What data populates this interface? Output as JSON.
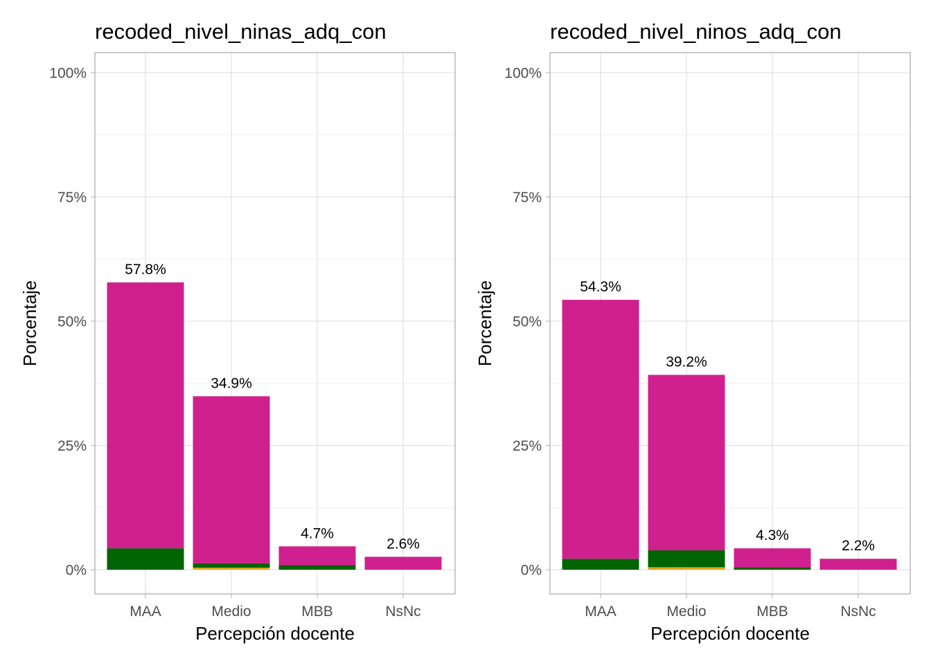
{
  "chart_data": [
    {
      "type": "bar",
      "stacked": true,
      "title": "recoded_nivel_ninas_adq_con",
      "xlabel": "Percepción docente",
      "ylabel": "Porcentaje",
      "categories": [
        "MAA",
        "Medio",
        "MBB",
        "NsNc"
      ],
      "ylim": [
        0,
        100
      ],
      "yticks": [
        "0%",
        "25%",
        "50%",
        "75%",
        "100%"
      ],
      "ytick_values": [
        0,
        25,
        50,
        75,
        100
      ],
      "grid": true,
      "totals": [
        57.8,
        34.9,
        4.7,
        2.6
      ],
      "total_labels": [
        "57.8%",
        "34.9%",
        "4.7%",
        "2.6%"
      ],
      "series": [
        {
          "color": "#E6A817",
          "values": [
            0.0,
            0.4,
            0.0,
            0.0
          ]
        },
        {
          "color": "#006400",
          "values": [
            4.3,
            0.9,
            0.9,
            0.0
          ]
        },
        {
          "color": "#D0208E",
          "values": [
            53.5,
            33.6,
            3.8,
            2.6
          ]
        }
      ]
    },
    {
      "type": "bar",
      "stacked": true,
      "title": "recoded_nivel_ninos_adq_con",
      "xlabel": "Percepción docente",
      "ylabel": "Porcentaje",
      "categories": [
        "MAA",
        "Medio",
        "MBB",
        "NsNc"
      ],
      "ylim": [
        0,
        100
      ],
      "yticks": [
        "0%",
        "25%",
        "50%",
        "75%",
        "100%"
      ],
      "ytick_values": [
        0,
        25,
        50,
        75,
        100
      ],
      "grid": true,
      "totals": [
        54.3,
        39.2,
        4.3,
        2.2
      ],
      "total_labels": [
        "54.3%",
        "39.2%",
        "4.3%",
        "2.2%"
      ],
      "series": [
        {
          "color": "#E6A817",
          "values": [
            0.0,
            0.5,
            0.0,
            0.0
          ]
        },
        {
          "color": "#006400",
          "values": [
            2.2,
            3.4,
            0.5,
            0.0
          ]
        },
        {
          "color": "#D0208E",
          "values": [
            52.1,
            35.3,
            3.8,
            2.2
          ]
        }
      ]
    }
  ]
}
